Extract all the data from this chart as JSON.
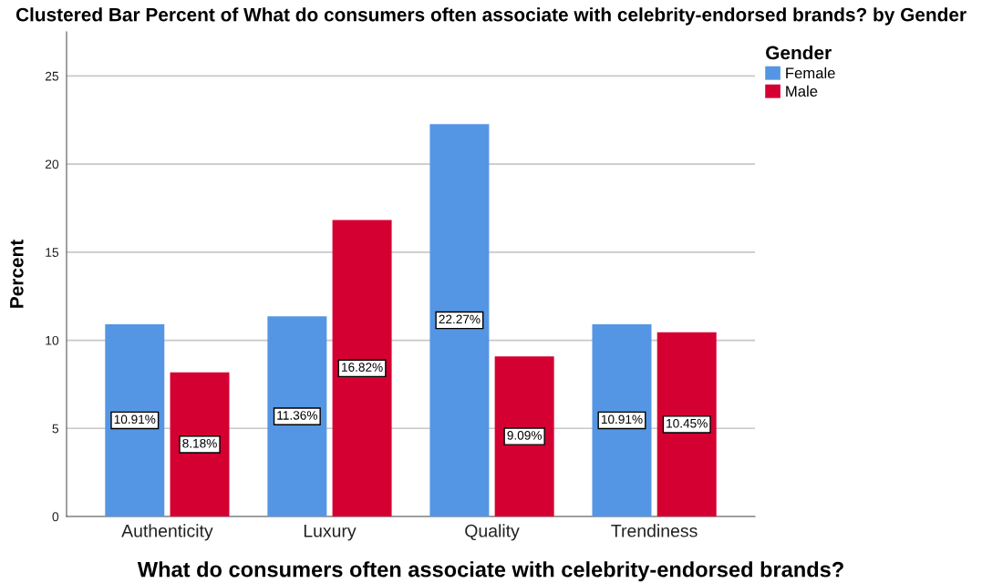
{
  "chart_data": {
    "type": "bar",
    "title": "Clustered Bar Percent of What do consumers often associate with celebrity-endorsed brands? by Gender",
    "xlabel": "What do consumers often associate with celebrity-endorsed brands?",
    "ylabel": "Percent",
    "legend_title": "Gender",
    "categories": [
      "Authenticity",
      "Luxury",
      "Quality",
      "Trendiness"
    ],
    "series": [
      {
        "name": "Female",
        "color": "#5596e4",
        "values": [
          10.91,
          11.36,
          22.27,
          10.91
        ],
        "value_labels": [
          "10.91%",
          "11.36%",
          "22.27%",
          "10.91%"
        ]
      },
      {
        "name": "Male",
        "color": "#d50032",
        "values": [
          8.18,
          16.82,
          9.09,
          10.45
        ],
        "value_labels": [
          "8.18%",
          "16.82%",
          "9.09%",
          "10.45%"
        ]
      }
    ],
    "ylim": [
      0,
      27.5
    ],
    "yticks": [
      0,
      5,
      10,
      15,
      20,
      25
    ],
    "grid": "y",
    "legend": "top right"
  }
}
